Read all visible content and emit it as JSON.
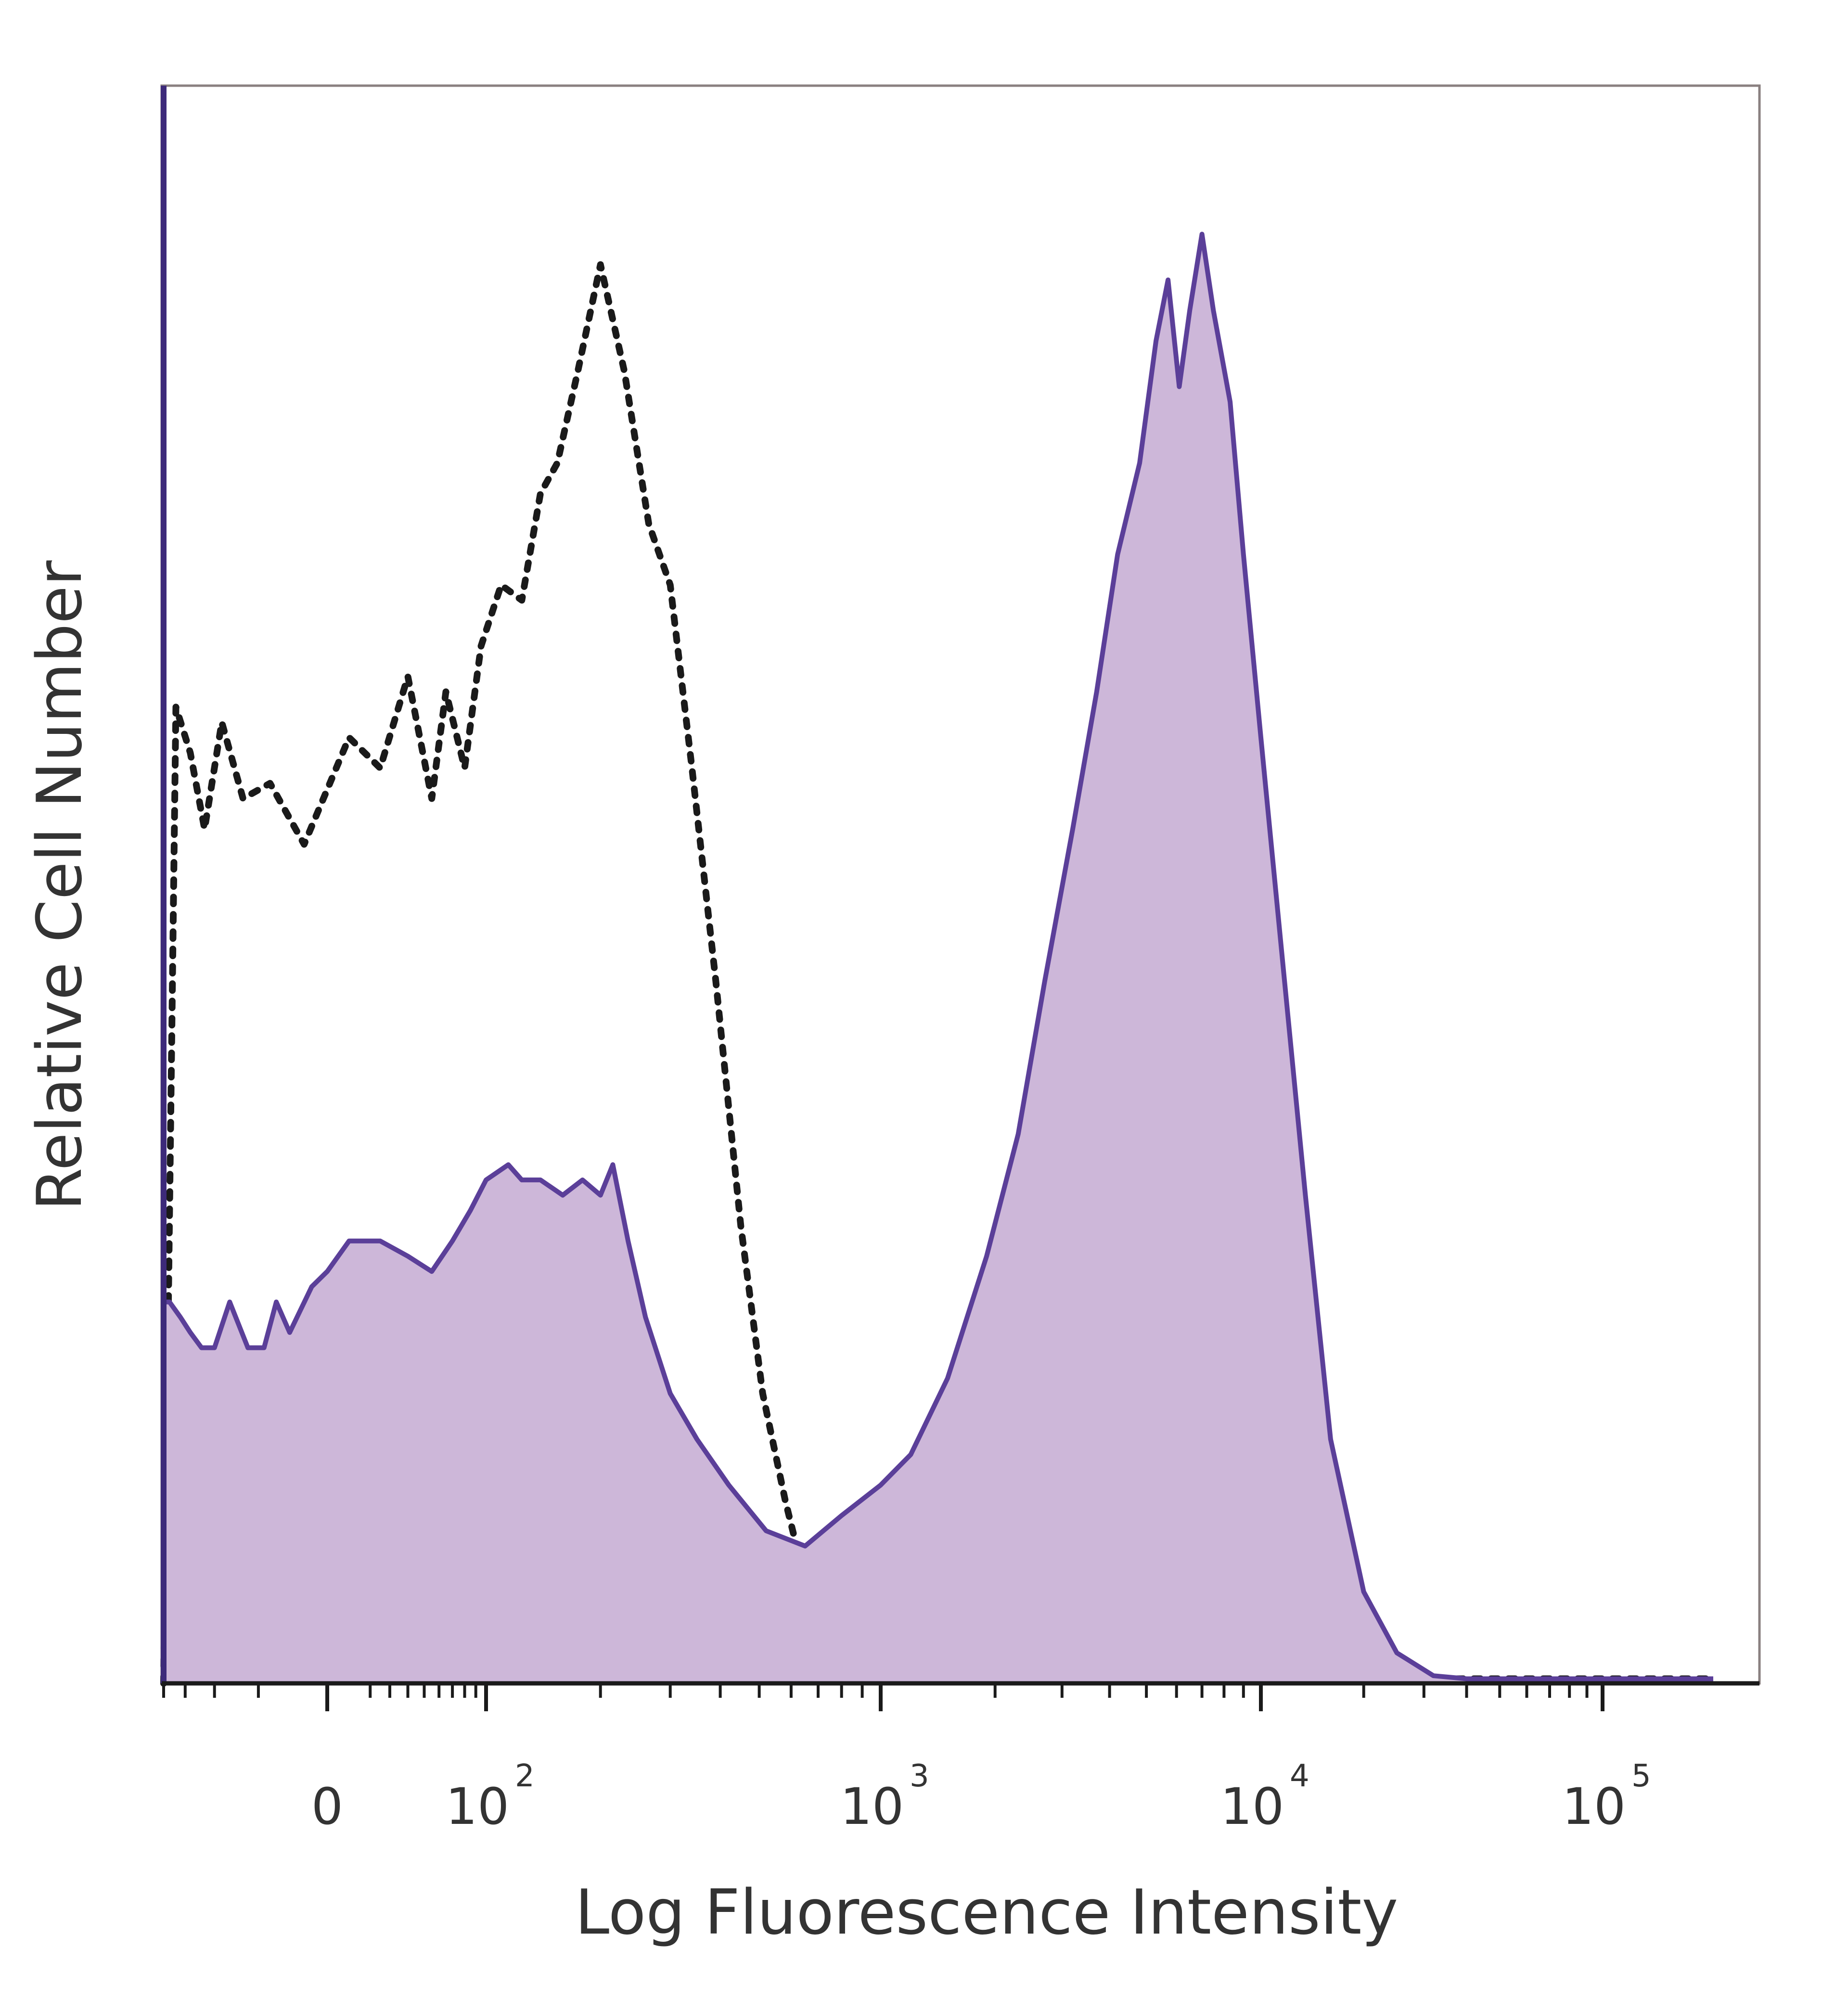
{
  "chart_data": {
    "type": "area",
    "xlabel": "Log Fluorescence Intensity",
    "ylabel": "Relative Cell Number",
    "x_scale": "biexponential",
    "xlim": [
      -200,
      200000
    ],
    "ylim": [
      0,
      100
    ],
    "grid": false,
    "legend": "none",
    "x_ticks": [
      {
        "value": 0,
        "base": "0",
        "exp": ""
      },
      {
        "value": 100,
        "base": "10",
        "exp": "2"
      },
      {
        "value": 1000,
        "base": "10",
        "exp": "3"
      },
      {
        "value": 10000,
        "base": "10",
        "exp": "4"
      },
      {
        "value": 100000,
        "base": "10",
        "exp": "5"
      }
    ],
    "series": [
      {
        "style": "dotted",
        "color": "#1a1a1a",
        "x": [
          -200,
          -170,
          -140,
          -115,
          -90,
          -65,
          -40,
          -15,
          10,
          25,
          40,
          55,
          65,
          80,
          95,
          110,
          125,
          140,
          155,
          175,
          200,
          230,
          265,
          300,
          340,
          390,
          450,
          510,
          580,
          660,
          760,
          880,
          1000,
          1400,
          2500,
          5000,
          10000,
          20000,
          50000,
          100000,
          200000
        ],
        "y": [
          0,
          64,
          61,
          56,
          63,
          58,
          59,
          55,
          62,
          60,
          66,
          58,
          65,
          60,
          68,
          72,
          71,
          78,
          80,
          86,
          93,
          86,
          76,
          72,
          60,
          46,
          30,
          19,
          12,
          6,
          2,
          1,
          0.5,
          0.3,
          0.3,
          0.3,
          0.3,
          0.3,
          0.3,
          0.3,
          0.3
        ]
      },
      {
        "style": "filled",
        "color": "#5b3f99",
        "fill": "#cdb7d9",
        "x": [
          -200,
          -185,
          -160,
          -140,
          -120,
          -100,
          -80,
          -60,
          -45,
          -35,
          -25,
          -10,
          0,
          10,
          25,
          40,
          55,
          70,
          85,
          100,
          115,
          125,
          140,
          160,
          180,
          200,
          215,
          235,
          260,
          300,
          350,
          420,
          520,
          650,
          800,
          1000,
          1200,
          1500,
          1900,
          2300,
          2700,
          3200,
          3700,
          4200,
          4800,
          5300,
          5700,
          6100,
          6500,
          7000,
          7500,
          8300,
          9000,
          10000,
          11500,
          13500,
          16000,
          20000,
          25000,
          32000,
          40000,
          50000,
          100000,
          200000
        ],
        "y": [
          25,
          25,
          24,
          23,
          22,
          22,
          25,
          22,
          22,
          25,
          23,
          26,
          27,
          29,
          29,
          28,
          27,
          29,
          31,
          33,
          34,
          33,
          33,
          32,
          33,
          32,
          34,
          29,
          24,
          19,
          16,
          13,
          10,
          9,
          11,
          13,
          15,
          20,
          28,
          36,
          46,
          56,
          65,
          74,
          80,
          88,
          92,
          85,
          90,
          95,
          90,
          84,
          74,
          62,
          48,
          32,
          16,
          6,
          2,
          0.5,
          0.3,
          0.3,
          0.3,
          0.3
        ]
      }
    ]
  }
}
